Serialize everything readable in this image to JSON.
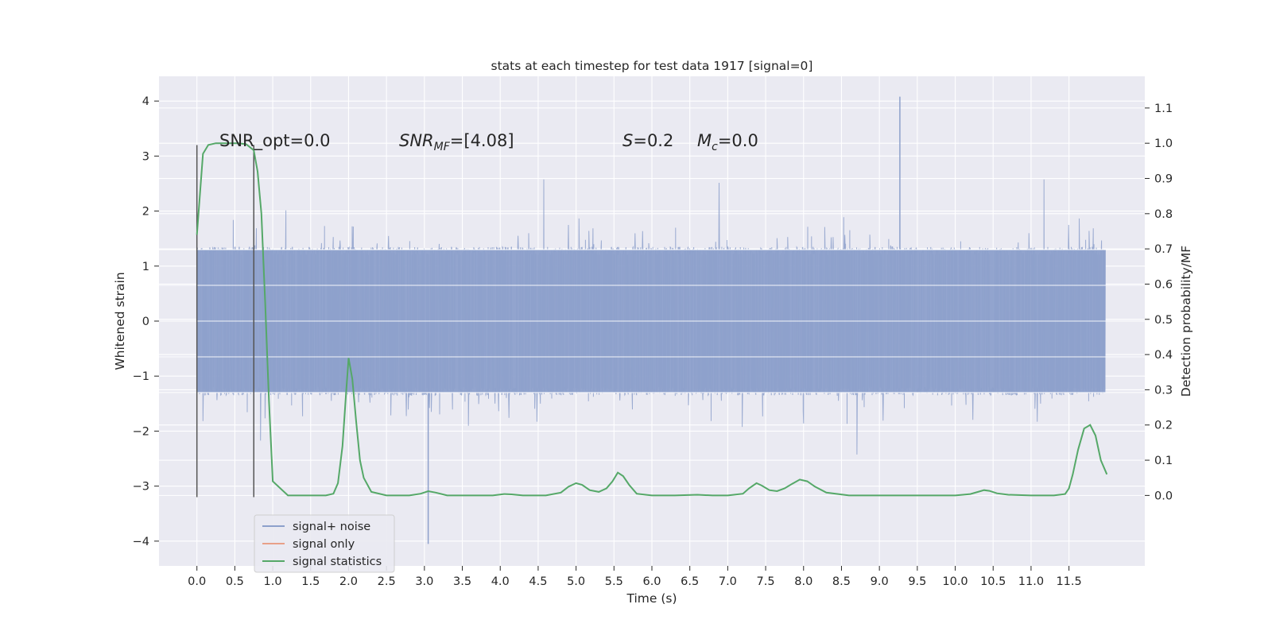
{
  "chart_data": {
    "type": "line",
    "title": "stats at each timestep for test data 1917 [signal=0]",
    "xlabel": "Time (s)",
    "ylabel": "Whitened strain",
    "y2label": "Detection probability/MF",
    "xlim": [
      -0.5,
      12.5
    ],
    "ylim": [
      -4.45,
      4.45
    ],
    "y2lim": [
      -0.2,
      1.19
    ],
    "grid": true,
    "legend_position": "lower-left",
    "x_ticks": [
      "0.0",
      "0.5",
      "1.0",
      "1.5",
      "2.0",
      "2.5",
      "3.0",
      "3.5",
      "4.0",
      "4.5",
      "5.0",
      "5.5",
      "6.0",
      "6.5",
      "7.0",
      "7.5",
      "8.0",
      "8.5",
      "9.0",
      "9.5",
      "10.0",
      "10.5",
      "11.0",
      "11.5"
    ],
    "y_ticks": [
      "4",
      "3",
      "2",
      "1",
      "0",
      "−1",
      "−2",
      "−3",
      "−4"
    ],
    "y2_ticks": [
      "1.1",
      "1.0",
      "0.9",
      "0.8",
      "0.7",
      "0.6",
      "0.5",
      "0.4",
      "0.3",
      "0.2",
      "0.1",
      "0.0"
    ],
    "annotations": {
      "snr_opt": "SNR_opt=0.0",
      "snr_mf": "SNR_MF=[4.08]",
      "s": "S=0.2",
      "mc": "M_c=0.0"
    },
    "vertical_markers": {
      "x": [
        0.0,
        0.75
      ],
      "y_range": [
        -3.2,
        3.2
      ]
    },
    "series": [
      {
        "name": "signal+ noise",
        "color": "#8da0cb",
        "description_range": {
          "x_start": 0.0,
          "x_end": 11.98,
          "typical_band": [
            -1.3,
            1.3
          ],
          "max": 4.08,
          "min": -4.08
        }
      },
      {
        "name": "signal only",
        "color": "#e8a088",
        "x": [],
        "y": []
      },
      {
        "name": "signal statistics",
        "color": "#55a868",
        "axis": "right",
        "x": [
          0.0,
          0.08,
          0.15,
          0.25,
          0.4,
          0.55,
          0.65,
          0.75,
          0.8,
          0.85,
          0.9,
          0.95,
          1.0,
          1.2,
          1.5,
          1.7,
          1.8,
          1.86,
          1.92,
          1.97,
          2.0,
          2.05,
          2.1,
          2.15,
          2.2,
          2.3,
          2.5,
          2.8,
          2.95,
          3.05,
          3.15,
          3.3,
          3.6,
          3.9,
          4.05,
          4.15,
          4.3,
          4.6,
          4.8,
          4.9,
          5.0,
          5.08,
          5.18,
          5.3,
          5.4,
          5.48,
          5.55,
          5.62,
          5.7,
          5.8,
          6.0,
          6.3,
          6.6,
          6.8,
          7.0,
          7.2,
          7.28,
          7.38,
          7.45,
          7.55,
          7.65,
          7.75,
          7.85,
          7.95,
          8.05,
          8.15,
          8.3,
          8.6,
          9.0,
          9.5,
          10.0,
          10.2,
          10.3,
          10.38,
          10.45,
          10.55,
          10.7,
          11.0,
          11.3,
          11.45,
          11.5,
          11.55,
          11.62,
          11.7,
          11.78,
          11.85,
          11.92,
          12.0
        ],
        "y": [
          0.74,
          0.97,
          0.995,
          1.0,
          1.0,
          1.0,
          0.997,
          0.98,
          0.92,
          0.8,
          0.55,
          0.27,
          0.04,
          0.0,
          0.0,
          0.0,
          0.005,
          0.035,
          0.14,
          0.3,
          0.39,
          0.33,
          0.21,
          0.1,
          0.05,
          0.01,
          0.0,
          0.0,
          0.005,
          0.012,
          0.008,
          0.0,
          0.0,
          0.0,
          0.004,
          0.003,
          0.0,
          0.0,
          0.008,
          0.025,
          0.035,
          0.03,
          0.015,
          0.01,
          0.02,
          0.04,
          0.065,
          0.055,
          0.03,
          0.005,
          0.0,
          0.0,
          0.002,
          0.0,
          0.0,
          0.005,
          0.02,
          0.035,
          0.028,
          0.015,
          0.012,
          0.02,
          0.033,
          0.045,
          0.04,
          0.025,
          0.008,
          0.0,
          0.0,
          0.0,
          0.0,
          0.004,
          0.01,
          0.015,
          0.013,
          0.006,
          0.002,
          0.0,
          0.0,
          0.004,
          0.02,
          0.06,
          0.13,
          0.19,
          0.2,
          0.17,
          0.1,
          0.06
        ]
      }
    ]
  }
}
